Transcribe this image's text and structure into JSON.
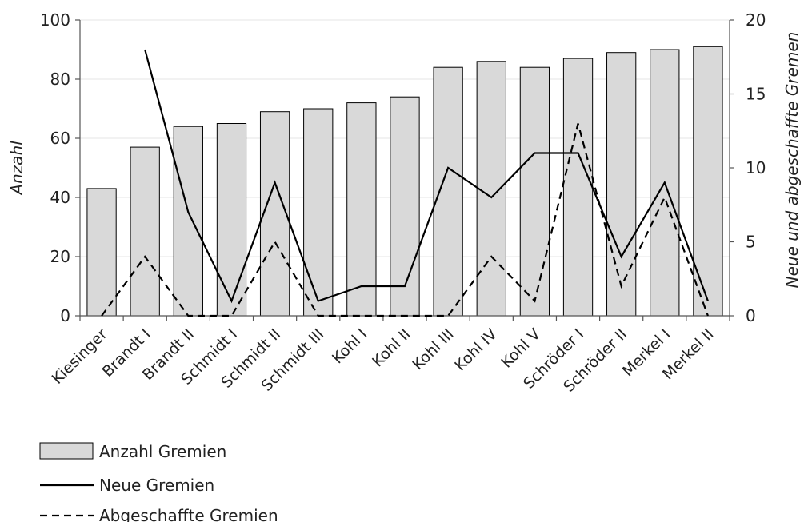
{
  "chart_data": {
    "type": "bar",
    "categories": [
      "Kiesinger",
      "Brandt I",
      "Brandt II",
      "Schmidt I",
      "Schmidt II",
      "Schmidt III",
      "Kohl I",
      "Kohl II",
      "Kohl III",
      "Kohl IV",
      "Kohl V",
      "Schröder I",
      "Schröder II",
      "Merkel I",
      "Merkel II"
    ],
    "series": [
      {
        "name": "Anzahl Gremien",
        "type": "bar",
        "axis": "left",
        "color": "#d9d9d9",
        "values": [
          43,
          57,
          64,
          65,
          69,
          70,
          72,
          74,
          84,
          86,
          84,
          87,
          89,
          90,
          91
        ]
      },
      {
        "name": "Neue Gremien",
        "type": "line",
        "axis": "right",
        "color": "#000000",
        "dash": "solid",
        "values": [
          null,
          18,
          7,
          1,
          9,
          1,
          2,
          2,
          10,
          8,
          11,
          11,
          4,
          9,
          1
        ]
      },
      {
        "name": "Abgeschaffte Gremien",
        "type": "line",
        "axis": "right",
        "color": "#000000",
        "dash": "dashed",
        "values": [
          0,
          4,
          0,
          0,
          5,
          0,
          0,
          0,
          0,
          4,
          1,
          13,
          2,
          8,
          0
        ]
      }
    ],
    "ylabel": "Anzahl",
    "y2label": "Neue und abgeschaffte Gremen",
    "ylim": [
      0,
      100
    ],
    "y2lim": [
      0,
      20
    ],
    "yticks": [
      0,
      20,
      40,
      60,
      80,
      100
    ],
    "y2ticks": [
      0,
      5,
      10,
      15,
      20
    ],
    "grid": true,
    "legend_position": "bottom-left"
  }
}
